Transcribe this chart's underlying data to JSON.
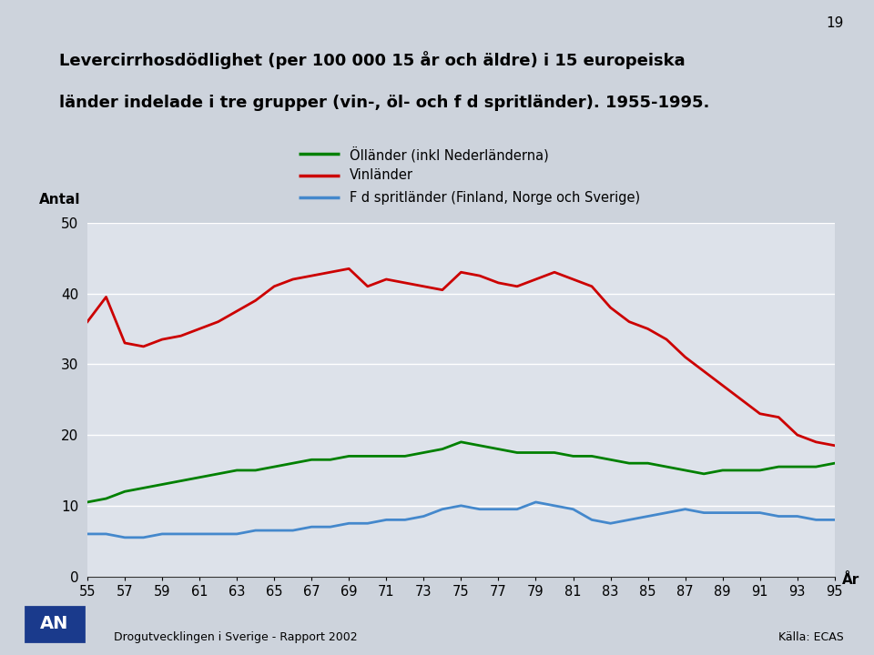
{
  "title_line1": "Levercirrhosdödlighet (per 100 000 15 år och äldre) i 15 europeiska",
  "title_line2": "länder indelade i tre grupper (vin-, öl- och f d spritländer). 1955-1995.",
  "ylabel": "Antal",
  "xlabel_end": "År",
  "page_number": "19",
  "footer_left": "Drogutvecklingen i Sverige - Rapport 2002",
  "footer_right": "Källa: ECAS",
  "background_color": "#cdd3dc",
  "plot_background": "#dde2ea",
  "legend_labels": [
    "Ölländer (inkl Nederländerna)",
    "Vinländer",
    "F d spritländer (Finland, Norge och Sverige)"
  ],
  "legend_colors": [
    "#008000",
    "#cc0000",
    "#4488cc"
  ],
  "years": [
    1955,
    1956,
    1957,
    1958,
    1959,
    1960,
    1961,
    1962,
    1963,
    1964,
    1965,
    1966,
    1967,
    1968,
    1969,
    1970,
    1971,
    1972,
    1973,
    1974,
    1975,
    1976,
    1977,
    1978,
    1979,
    1980,
    1981,
    1982,
    1983,
    1984,
    1985,
    1986,
    1987,
    1988,
    1989,
    1990,
    1991,
    1992,
    1993,
    1994,
    1995
  ],
  "vinlander": [
    36,
    39.5,
    33,
    32.5,
    33.5,
    34,
    35,
    36,
    37.5,
    39,
    41,
    42,
    42.5,
    43,
    43.5,
    41,
    42,
    41.5,
    41,
    40.5,
    43,
    42.5,
    41.5,
    41,
    42,
    43,
    42,
    41,
    38,
    36,
    35,
    33.5,
    31,
    29,
    27,
    25,
    23,
    22.5,
    20,
    19,
    18.5
  ],
  "ollander": [
    10.5,
    11,
    12,
    12.5,
    13,
    13.5,
    14,
    14.5,
    15,
    15,
    15.5,
    16,
    16.5,
    16.5,
    17,
    17,
    17,
    17,
    17.5,
    18,
    19,
    18.5,
    18,
    17.5,
    17.5,
    17.5,
    17,
    17,
    16.5,
    16,
    16,
    15.5,
    15,
    14.5,
    15,
    15,
    15,
    15.5,
    15.5,
    15.5,
    16
  ],
  "spritlander": [
    6,
    6,
    5.5,
    5.5,
    6,
    6,
    6,
    6,
    6,
    6.5,
    6.5,
    6.5,
    7,
    7,
    7.5,
    7.5,
    8,
    8,
    8.5,
    9.5,
    10,
    9.5,
    9.5,
    9.5,
    10.5,
    10,
    9.5,
    8,
    7.5,
    8,
    8.5,
    9,
    9.5,
    9,
    9,
    9,
    9,
    8.5,
    8.5,
    8,
    8
  ]
}
